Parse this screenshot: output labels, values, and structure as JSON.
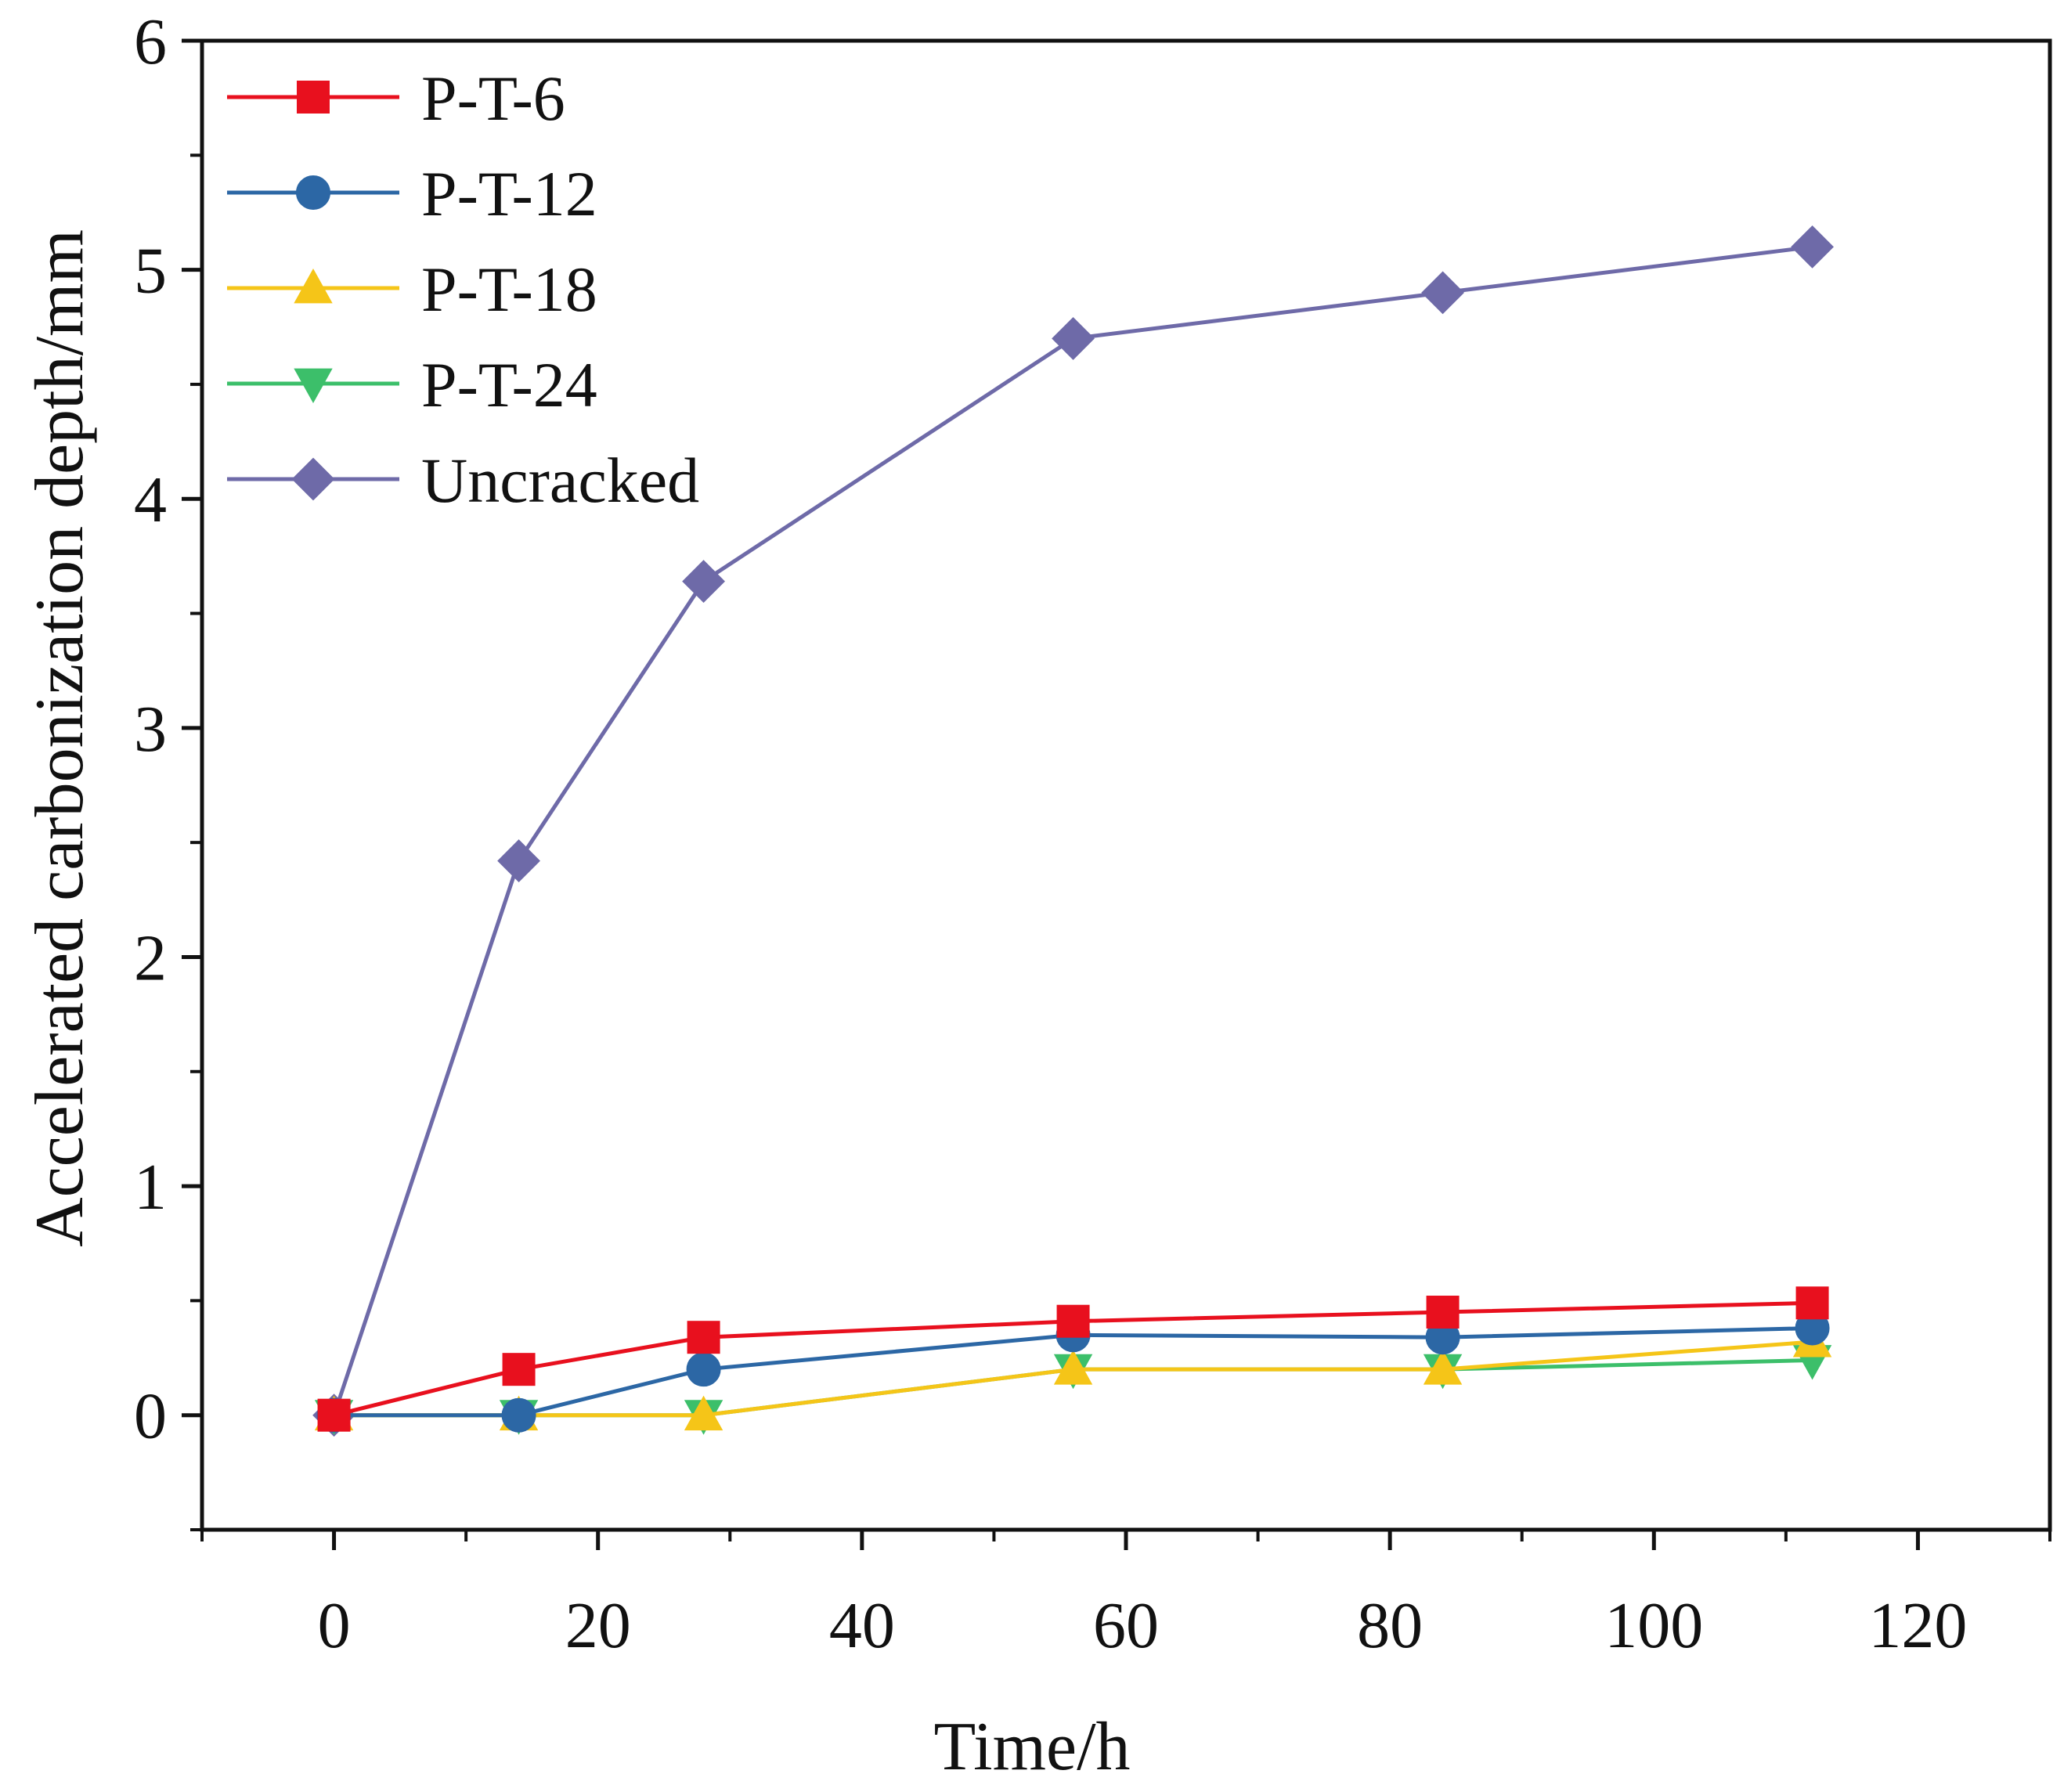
{
  "chart_data": {
    "type": "line",
    "title": "",
    "xlabel": "Time/h",
    "ylabel": "Accelerated carbonization depth/mm",
    "xlim": [
      -10,
      130
    ],
    "ylim": [
      -0.5,
      6
    ],
    "xticks": [
      0,
      20,
      40,
      60,
      80,
      100,
      120
    ],
    "yticks": [
      0,
      1,
      2,
      3,
      4,
      5,
      6
    ],
    "x": [
      0,
      14,
      28,
      56,
      84,
      112
    ],
    "grid": false,
    "legend_position": "top-left",
    "series": [
      {
        "name": "P-T-6",
        "marker": "square",
        "color": "#e8101e",
        "values": [
          0,
          0.2,
          0.34,
          0.41,
          0.45,
          0.49
        ]
      },
      {
        "name": "P-T-12",
        "marker": "circle",
        "color": "#2c67a5",
        "values": [
          0,
          0,
          0.2,
          0.35,
          0.34,
          0.38
        ]
      },
      {
        "name": "P-T-18",
        "marker": "triangle-up",
        "color": "#f5c518",
        "values": [
          0,
          0,
          0,
          0.2,
          0.2,
          0.32
        ]
      },
      {
        "name": "P-T-24",
        "marker": "triangle-down",
        "color": "#3cbf6a",
        "values": [
          0,
          0,
          0,
          0.2,
          0.2,
          0.24
        ]
      },
      {
        "name": "Uncracked",
        "marker": "diamond",
        "color": "#6e6aa8",
        "values": [
          0,
          2.42,
          3.64,
          4.7,
          4.9,
          5.1
        ]
      }
    ]
  }
}
